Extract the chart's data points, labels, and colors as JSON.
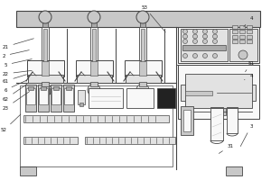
{
  "bg_color": "#f0f0f0",
  "line_color": "#444444",
  "fill_light": "#e2e2e2",
  "fill_mid": "#c8c8c8",
  "fill_dark": "#aaaaaa",
  "fill_white": "#f8f8f8",
  "fill_black": "#222222",
  "frame_bg": "#e8e8e8"
}
